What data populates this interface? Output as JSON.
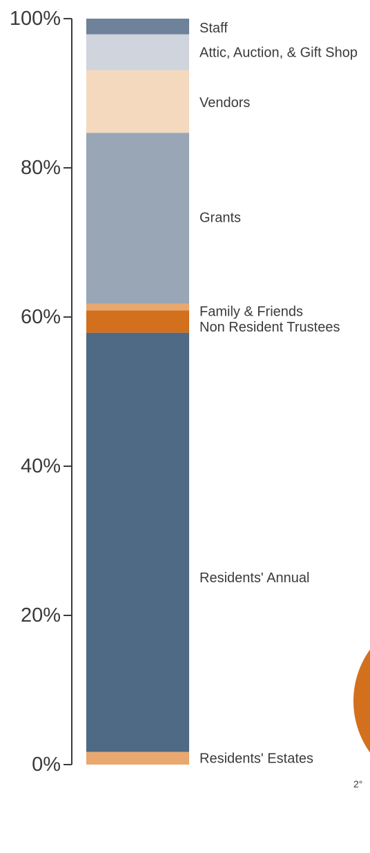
{
  "chart_data": {
    "type": "bar",
    "stacked": true,
    "orientation": "vertical",
    "ylim": [
      0,
      100
    ],
    "y_ticks": [
      {
        "value": 0,
        "label": "0%"
      },
      {
        "value": 20,
        "label": "20%"
      },
      {
        "value": 40,
        "label": "40%"
      },
      {
        "value": 60,
        "label": "60%"
      },
      {
        "value": 80,
        "label": "80%"
      },
      {
        "value": 100,
        "label": "100%"
      }
    ],
    "segments": [
      {
        "label": "Residents' Estates",
        "value": 1.7,
        "color": "#e9a86f",
        "label_value": 0.8
      },
      {
        "label": "Residents' Annual",
        "value": 56.2,
        "color": "#4e6a85",
        "label_value": 25.0
      },
      {
        "label": "Non Resident Trustees",
        "value": 3.0,
        "color": "#d2701e",
        "label_value": 58.6
      },
      {
        "label": "Family & Friends",
        "value": 0.9,
        "color": "#e9a86f",
        "label_value": 60.7
      },
      {
        "label": "Grants",
        "value": 22.9,
        "color": "#98a6b6",
        "label_value": 73.3
      },
      {
        "label": "Vendors",
        "value": 8.4,
        "color": "#f4d9be",
        "label_value": 88.7
      },
      {
        "label": "Attic, Auction, & Gift Shop",
        "value": 4.8,
        "color": "#cfd4dd",
        "label_value": 95.4
      },
      {
        "label": "Staff",
        "value": 2.1,
        "color": "#6e8299",
        "label_value": 98.7
      }
    ],
    "axis_color": "#3a3a3a"
  },
  "clipped_figure": {
    "fragment_label": "2°",
    "color": "#d2701e"
  }
}
